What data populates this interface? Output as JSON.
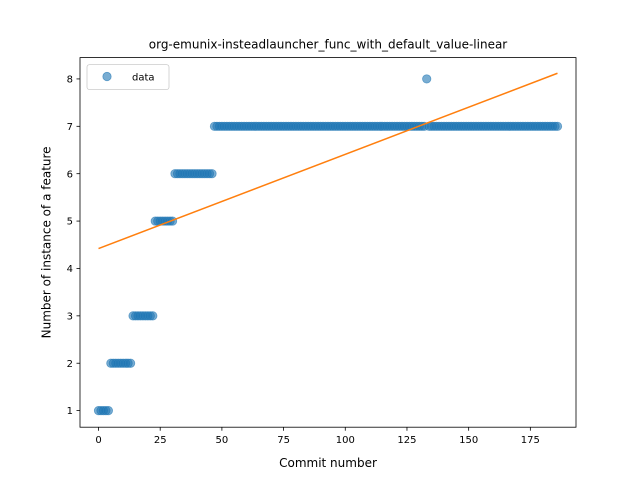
{
  "chart_data": {
    "type": "scatter",
    "title": "org-emunix-insteadlauncher_func_with_default_value-linear",
    "xlabel": "Commit number",
    "ylabel": "Number of instance of a feature",
    "xlim": [
      -7.5,
      193.5
    ],
    "ylim": [
      0.65,
      8.45
    ],
    "xticks": [
      0,
      25,
      50,
      75,
      100,
      125,
      150,
      175
    ],
    "yticks": [
      1,
      2,
      3,
      4,
      5,
      6,
      7,
      8
    ],
    "grid": false,
    "legend": {
      "position": "upper-left",
      "entries": [
        "data"
      ]
    },
    "series": [
      {
        "name": "data",
        "kind": "scatter",
        "color": "#1f77b4",
        "points": [
          [
            0,
            1
          ],
          [
            1,
            1
          ],
          [
            2,
            1
          ],
          [
            3,
            1
          ],
          [
            4,
            1
          ],
          [
            5,
            2
          ],
          [
            6,
            2
          ],
          [
            7,
            2
          ],
          [
            8,
            2
          ],
          [
            9,
            2
          ],
          [
            10,
            2
          ],
          [
            11,
            2
          ],
          [
            12,
            2
          ],
          [
            13,
            2
          ],
          [
            14,
            3
          ],
          [
            15,
            3
          ],
          [
            16,
            3
          ],
          [
            17,
            3
          ],
          [
            18,
            3
          ],
          [
            19,
            3
          ],
          [
            20,
            3
          ],
          [
            21,
            3
          ],
          [
            22,
            3
          ],
          [
            23,
            5
          ],
          [
            24,
            5
          ],
          [
            25,
            5
          ],
          [
            26,
            5
          ],
          [
            27,
            5
          ],
          [
            28,
            5
          ],
          [
            29,
            5
          ],
          [
            30,
            5
          ],
          [
            31,
            6
          ],
          [
            32,
            6
          ],
          [
            33,
            6
          ],
          [
            34,
            6
          ],
          [
            35,
            6
          ],
          [
            36,
            6
          ],
          [
            37,
            6
          ],
          [
            38,
            6
          ],
          [
            39,
            6
          ],
          [
            40,
            6
          ],
          [
            41,
            6
          ],
          [
            42,
            6
          ],
          [
            43,
            6
          ],
          [
            44,
            6
          ],
          [
            45,
            6
          ],
          [
            46,
            6
          ],
          [
            47,
            7
          ],
          [
            48,
            7
          ],
          [
            49,
            7
          ],
          [
            50,
            7
          ],
          [
            51,
            7
          ],
          [
            52,
            7
          ],
          [
            53,
            7
          ],
          [
            54,
            7
          ],
          [
            55,
            7
          ],
          [
            56,
            7
          ],
          [
            57,
            7
          ],
          [
            58,
            7
          ],
          [
            59,
            7
          ],
          [
            60,
            7
          ],
          [
            61,
            7
          ],
          [
            62,
            7
          ],
          [
            63,
            7
          ],
          [
            64,
            7
          ],
          [
            65,
            7
          ],
          [
            66,
            7
          ],
          [
            67,
            7
          ],
          [
            68,
            7
          ],
          [
            69,
            7
          ],
          [
            70,
            7
          ],
          [
            71,
            7
          ],
          [
            72,
            7
          ],
          [
            73,
            7
          ],
          [
            74,
            7
          ],
          [
            75,
            7
          ],
          [
            76,
            7
          ],
          [
            77,
            7
          ],
          [
            78,
            7
          ],
          [
            79,
            7
          ],
          [
            80,
            7
          ],
          [
            81,
            7
          ],
          [
            82,
            7
          ],
          [
            83,
            7
          ],
          [
            84,
            7
          ],
          [
            85,
            7
          ],
          [
            86,
            7
          ],
          [
            87,
            7
          ],
          [
            88,
            7
          ],
          [
            89,
            7
          ],
          [
            90,
            7
          ],
          [
            91,
            7
          ],
          [
            92,
            7
          ],
          [
            93,
            7
          ],
          [
            94,
            7
          ],
          [
            95,
            7
          ],
          [
            96,
            7
          ],
          [
            97,
            7
          ],
          [
            98,
            7
          ],
          [
            99,
            7
          ],
          [
            100,
            7
          ],
          [
            101,
            7
          ],
          [
            102,
            7
          ],
          [
            103,
            7
          ],
          [
            104,
            7
          ],
          [
            105,
            7
          ],
          [
            106,
            7
          ],
          [
            107,
            7
          ],
          [
            108,
            7
          ],
          [
            109,
            7
          ],
          [
            110,
            7
          ],
          [
            111,
            7
          ],
          [
            112,
            7
          ],
          [
            113,
            7
          ],
          [
            114,
            7
          ],
          [
            115,
            7
          ],
          [
            116,
            7
          ],
          [
            117,
            7
          ],
          [
            118,
            7
          ],
          [
            119,
            7
          ],
          [
            120,
            7
          ],
          [
            121,
            7
          ],
          [
            122,
            7
          ],
          [
            123,
            7
          ],
          [
            124,
            7
          ],
          [
            125,
            7
          ],
          [
            126,
            7
          ],
          [
            127,
            7
          ],
          [
            128,
            7
          ],
          [
            129,
            7
          ],
          [
            130,
            7
          ],
          [
            131,
            7
          ],
          [
            132,
            7
          ],
          [
            133,
            8
          ],
          [
            134,
            7
          ],
          [
            135,
            7
          ],
          [
            136,
            7
          ],
          [
            137,
            7
          ],
          [
            138,
            7
          ],
          [
            139,
            7
          ],
          [
            140,
            7
          ],
          [
            141,
            7
          ],
          [
            142,
            7
          ],
          [
            143,
            7
          ],
          [
            144,
            7
          ],
          [
            145,
            7
          ],
          [
            146,
            7
          ],
          [
            147,
            7
          ],
          [
            148,
            7
          ],
          [
            149,
            7
          ],
          [
            150,
            7
          ],
          [
            151,
            7
          ],
          [
            152,
            7
          ],
          [
            153,
            7
          ],
          [
            154,
            7
          ],
          [
            155,
            7
          ],
          [
            156,
            7
          ],
          [
            157,
            7
          ],
          [
            158,
            7
          ],
          [
            159,
            7
          ],
          [
            160,
            7
          ],
          [
            161,
            7
          ],
          [
            162,
            7
          ],
          [
            163,
            7
          ],
          [
            164,
            7
          ],
          [
            165,
            7
          ],
          [
            166,
            7
          ],
          [
            167,
            7
          ],
          [
            168,
            7
          ],
          [
            169,
            7
          ],
          [
            170,
            7
          ],
          [
            171,
            7
          ],
          [
            172,
            7
          ],
          [
            173,
            7
          ],
          [
            174,
            7
          ],
          [
            175,
            7
          ],
          [
            176,
            7
          ],
          [
            177,
            7
          ],
          [
            178,
            7
          ],
          [
            179,
            7
          ],
          [
            180,
            7
          ],
          [
            181,
            7
          ],
          [
            182,
            7
          ],
          [
            183,
            7
          ],
          [
            184,
            7
          ],
          [
            185,
            7
          ],
          [
            186,
            7
          ]
        ]
      },
      {
        "kind": "line",
        "color": "#ff7f0e",
        "points": [
          [
            0,
            4.42
          ],
          [
            186,
            8.12
          ]
        ]
      }
    ]
  }
}
